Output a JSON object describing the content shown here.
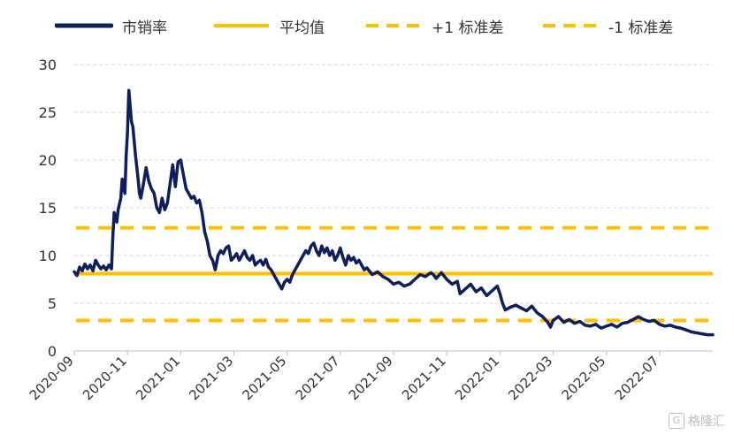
{
  "chart_data": {
    "type": "line",
    "title": "",
    "xlabel": "",
    "ylabel": "",
    "ylim": [
      0,
      30
    ],
    "yticks": [
      0,
      5,
      10,
      15,
      20,
      25,
      30
    ],
    "xlim": [
      0,
      24
    ],
    "xticks": [
      {
        "pos": 0,
        "label": "2020-09"
      },
      {
        "pos": 2,
        "label": "2020-11"
      },
      {
        "pos": 4,
        "label": "2021-01"
      },
      {
        "pos": 6,
        "label": "2021-03"
      },
      {
        "pos": 8,
        "label": "2021-05"
      },
      {
        "pos": 10,
        "label": "2021-07"
      },
      {
        "pos": 12,
        "label": "2021-09"
      },
      {
        "pos": 14,
        "label": "2021-11"
      },
      {
        "pos": 16,
        "label": "2022-01"
      },
      {
        "pos": 18,
        "label": "2022-03"
      },
      {
        "pos": 20,
        "label": "2022-05"
      },
      {
        "pos": 22,
        "label": "2022-07"
      }
    ],
    "grid": "horizontal-dashed",
    "legend_position": "top",
    "series": [
      {
        "name": "市销率",
        "style": "solid",
        "color": "#0f1f5c",
        "points": [
          [
            0.0,
            8.3
          ],
          [
            0.1,
            7.9
          ],
          [
            0.2,
            8.8
          ],
          [
            0.3,
            8.4
          ],
          [
            0.4,
            9.1
          ],
          [
            0.5,
            8.6
          ],
          [
            0.6,
            9.0
          ],
          [
            0.7,
            8.4
          ],
          [
            0.8,
            9.5
          ],
          [
            0.9,
            9.0
          ],
          [
            1.0,
            8.6
          ],
          [
            1.1,
            8.9
          ],
          [
            1.2,
            8.5
          ],
          [
            1.3,
            9.0
          ],
          [
            1.4,
            8.6
          ],
          [
            1.45,
            12.0
          ],
          [
            1.5,
            14.5
          ],
          [
            1.6,
            13.5
          ],
          [
            1.65,
            14.8
          ],
          [
            1.75,
            16.0
          ],
          [
            1.8,
            18.0
          ],
          [
            1.9,
            16.5
          ],
          [
            1.95,
            20.5
          ],
          [
            2.0,
            23.0
          ],
          [
            2.05,
            27.3
          ],
          [
            2.15,
            24.0
          ],
          [
            2.2,
            23.5
          ],
          [
            2.3,
            20.5
          ],
          [
            2.4,
            18.0
          ],
          [
            2.45,
            16.5
          ],
          [
            2.5,
            16.0
          ],
          [
            2.6,
            17.5
          ],
          [
            2.7,
            19.2
          ],
          [
            2.8,
            17.8
          ],
          [
            2.9,
            17.0
          ],
          [
            3.0,
            16.5
          ],
          [
            3.1,
            15.0
          ],
          [
            3.2,
            14.5
          ],
          [
            3.3,
            16.0
          ],
          [
            3.4,
            14.8
          ],
          [
            3.5,
            15.5
          ],
          [
            3.6,
            17.5
          ],
          [
            3.7,
            19.5
          ],
          [
            3.8,
            17.2
          ],
          [
            3.9,
            19.8
          ],
          [
            4.0,
            20.0
          ],
          [
            4.1,
            18.5
          ],
          [
            4.2,
            17.0
          ],
          [
            4.3,
            16.5
          ],
          [
            4.4,
            16.0
          ],
          [
            4.5,
            16.2
          ],
          [
            4.6,
            15.5
          ],
          [
            4.7,
            15.8
          ],
          [
            4.8,
            14.5
          ],
          [
            4.9,
            12.5
          ],
          [
            5.0,
            11.5
          ],
          [
            5.1,
            10.0
          ],
          [
            5.2,
            9.5
          ],
          [
            5.3,
            8.5
          ],
          [
            5.4,
            10.0
          ],
          [
            5.5,
            10.5
          ],
          [
            5.6,
            10.2
          ],
          [
            5.7,
            10.8
          ],
          [
            5.8,
            11.0
          ],
          [
            5.9,
            9.5
          ],
          [
            6.0,
            9.8
          ],
          [
            6.1,
            10.2
          ],
          [
            6.2,
            9.5
          ],
          [
            6.3,
            10.0
          ],
          [
            6.4,
            10.5
          ],
          [
            6.5,
            9.8
          ],
          [
            6.6,
            9.5
          ],
          [
            6.7,
            10.0
          ],
          [
            6.8,
            9.0
          ],
          [
            6.9,
            9.3
          ],
          [
            7.0,
            9.5
          ],
          [
            7.1,
            9.0
          ],
          [
            7.2,
            9.6
          ],
          [
            7.3,
            8.8
          ],
          [
            7.4,
            8.5
          ],
          [
            7.5,
            8.0
          ],
          [
            7.6,
            7.5
          ],
          [
            7.7,
            7.0
          ],
          [
            7.8,
            6.5
          ],
          [
            7.9,
            7.2
          ],
          [
            8.0,
            7.5
          ],
          [
            8.1,
            7.2
          ],
          [
            8.2,
            8.0
          ],
          [
            8.3,
            8.5
          ],
          [
            8.4,
            9.0
          ],
          [
            8.5,
            9.5
          ],
          [
            8.6,
            10.0
          ],
          [
            8.7,
            10.5
          ],
          [
            8.8,
            10.2
          ],
          [
            8.9,
            11.0
          ],
          [
            9.0,
            11.3
          ],
          [
            9.1,
            10.5
          ],
          [
            9.2,
            10.0
          ],
          [
            9.3,
            11.0
          ],
          [
            9.4,
            10.3
          ],
          [
            9.5,
            10.8
          ],
          [
            9.6,
            10.0
          ],
          [
            9.7,
            10.5
          ],
          [
            9.8,
            9.5
          ],
          [
            9.9,
            10.0
          ],
          [
            10.0,
            10.8
          ],
          [
            10.1,
            9.8
          ],
          [
            10.2,
            9.0
          ],
          [
            10.3,
            10.0
          ],
          [
            10.4,
            9.5
          ],
          [
            10.5,
            9.8
          ],
          [
            10.6,
            9.2
          ],
          [
            10.7,
            9.5
          ],
          [
            10.8,
            9.0
          ],
          [
            10.9,
            8.5
          ],
          [
            11.0,
            8.7
          ],
          [
            11.2,
            8.0
          ],
          [
            11.4,
            8.3
          ],
          [
            11.6,
            7.8
          ],
          [
            11.8,
            7.5
          ],
          [
            12.0,
            7.0
          ],
          [
            12.2,
            7.2
          ],
          [
            12.4,
            6.8
          ],
          [
            12.6,
            7.0
          ],
          [
            12.8,
            7.5
          ],
          [
            13.0,
            8.0
          ],
          [
            13.2,
            7.8
          ],
          [
            13.4,
            8.2
          ],
          [
            13.5,
            8.0
          ],
          [
            13.6,
            7.6
          ],
          [
            13.8,
            8.2
          ],
          [
            14.0,
            7.5
          ],
          [
            14.2,
            7.0
          ],
          [
            14.4,
            7.3
          ],
          [
            14.5,
            6.0
          ],
          [
            14.7,
            6.5
          ],
          [
            14.9,
            7.0
          ],
          [
            15.1,
            6.2
          ],
          [
            15.3,
            6.6
          ],
          [
            15.5,
            5.8
          ],
          [
            15.7,
            6.3
          ],
          [
            15.9,
            6.8
          ],
          [
            16.0,
            6.0
          ],
          [
            16.1,
            5.0
          ],
          [
            16.2,
            4.3
          ],
          [
            16.4,
            4.6
          ],
          [
            16.6,
            4.8
          ],
          [
            16.8,
            4.5
          ],
          [
            17.0,
            4.2
          ],
          [
            17.2,
            4.7
          ],
          [
            17.4,
            4.0
          ],
          [
            17.6,
            3.6
          ],
          [
            17.8,
            3.0
          ],
          [
            17.9,
            2.5
          ],
          [
            18.0,
            3.2
          ],
          [
            18.2,
            3.6
          ],
          [
            18.4,
            3.0
          ],
          [
            18.6,
            3.3
          ],
          [
            18.8,
            2.9
          ],
          [
            19.0,
            3.1
          ],
          [
            19.2,
            2.7
          ],
          [
            19.4,
            2.6
          ],
          [
            19.6,
            2.8
          ],
          [
            19.8,
            2.4
          ],
          [
            20.0,
            2.6
          ],
          [
            20.2,
            2.8
          ],
          [
            20.4,
            2.5
          ],
          [
            20.6,
            2.9
          ],
          [
            20.8,
            3.0
          ],
          [
            21.0,
            3.3
          ],
          [
            21.2,
            3.6
          ],
          [
            21.4,
            3.3
          ],
          [
            21.6,
            3.1
          ],
          [
            21.8,
            3.2
          ],
          [
            22.0,
            2.8
          ],
          [
            22.2,
            2.6
          ],
          [
            22.4,
            2.7
          ],
          [
            22.6,
            2.5
          ],
          [
            22.8,
            2.4
          ],
          [
            23.0,
            2.2
          ],
          [
            23.2,
            2.0
          ],
          [
            23.4,
            1.9
          ],
          [
            23.6,
            1.8
          ],
          [
            23.8,
            1.7
          ],
          [
            24.0,
            1.7
          ]
        ]
      },
      {
        "name": "平均值",
        "style": "solid",
        "color": "#ffc000",
        "value": 8.1
      },
      {
        "name": "+1 标准差",
        "style": "dashed",
        "color": "#ffc000",
        "value": 12.9
      },
      {
        "name": "-1 标准差",
        "style": "dashed",
        "color": "#ffc000",
        "value": 3.2
      }
    ]
  },
  "legend": {
    "items": [
      {
        "label": "市销率",
        "color": "#0f1f5c",
        "style": "solid"
      },
      {
        "label": "平均值",
        "color": "#ffc000",
        "style": "solid"
      },
      {
        "label": "+1 标准差",
        "color": "#ffc000",
        "style": "dashed"
      },
      {
        "label": "-1 标准差",
        "color": "#ffc000",
        "style": "dashed"
      }
    ]
  },
  "watermark": {
    "icon": "G",
    "text": "格隆汇"
  }
}
